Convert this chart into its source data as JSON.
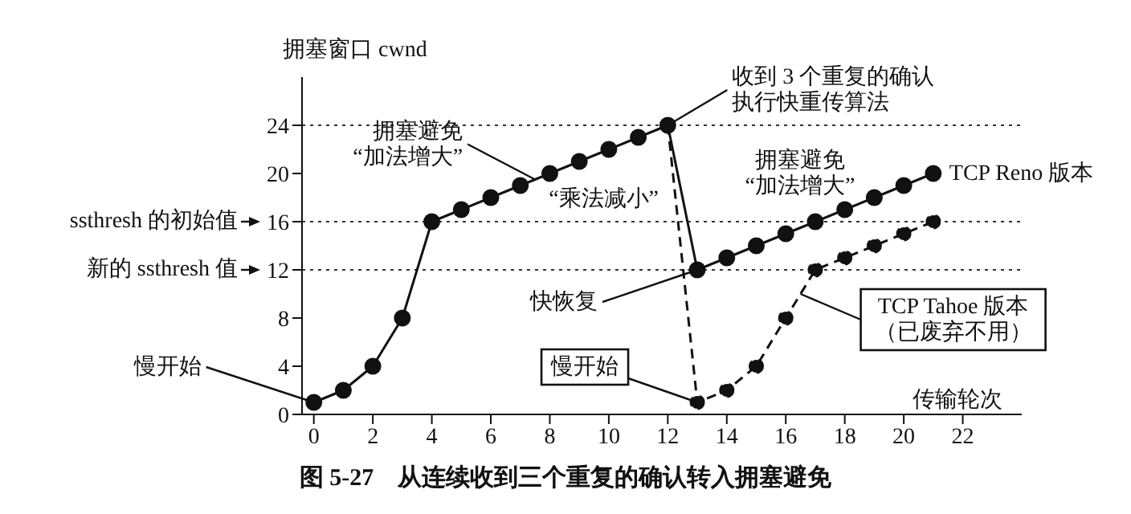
{
  "chart_data": {
    "type": "line",
    "title": "图 5-27　从连续收到三个重复的确认转入拥塞避免",
    "xlabel": "传输轮次",
    "ylabel": "拥塞窗口 cwnd",
    "xlim": [
      -0.4,
      24
    ],
    "xticks": [
      0,
      2,
      4,
      6,
      8,
      10,
      12,
      14,
      16,
      18,
      20,
      22
    ],
    "ylim": [
      0,
      28
    ],
    "yticks": [
      0,
      4,
      8,
      12,
      16,
      20,
      24
    ],
    "grid": false,
    "marker": "circle",
    "series": [
      {
        "x": [
          0,
          1,
          2,
          3,
          4,
          5,
          6,
          7,
          8,
          9,
          10,
          11,
          12,
          13,
          14,
          15,
          16,
          17,
          18,
          19,
          20,
          21
        ],
        "values": [
          1,
          2,
          4,
          8,
          16,
          17,
          18,
          19,
          20,
          21,
          22,
          23,
          24,
          12,
          13,
          14,
          15,
          16,
          17,
          18,
          19,
          20
        ],
        "color": "#111111",
        "line_style": "solid"
      },
      {
        "x": [
          12,
          13,
          14,
          15,
          16,
          17,
          18,
          19,
          20,
          21
        ],
        "values": [
          24,
          1,
          2,
          4,
          8,
          12,
          13,
          14,
          15,
          16
        ],
        "color": "#111111",
        "line_style": "dashed"
      }
    ],
    "ref_lines": [
      {
        "axis": "y",
        "value": 24,
        "line_style": "dotted",
        "color": "#333333"
      },
      {
        "axis": "y",
        "value": 16,
        "label": "ssthresh 的初始值",
        "line_style": "dotted",
        "color": "#333333"
      },
      {
        "axis": "y",
        "value": 12,
        "label": "新的 ssthresh 值",
        "line_style": "dotted",
        "color": "#333333"
      }
    ],
    "annotations": [
      {
        "text": "慢开始",
        "x": 0,
        "y": 1
      },
      {
        "text": "拥塞避免“加法增大”",
        "x": 7.5,
        "y": 19.5
      },
      {
        "text": "收到 3 个重复的确认执行快重传算法",
        "x": 12,
        "y": 24
      },
      "“乘法减小”",
      "拥塞避免“加法增大”",
      {
        "text": "快恢复",
        "x": 13,
        "y": 12
      },
      {
        "text": "TCP Reno 版本",
        "x": 21,
        "y": 20
      },
      {
        "text": "TCP Tahoe 版本（已废弃不用）",
        "x": 16.5,
        "y": 10
      },
      {
        "text": "慢开始",
        "x": 13,
        "y": 1
      }
    ]
  }
}
